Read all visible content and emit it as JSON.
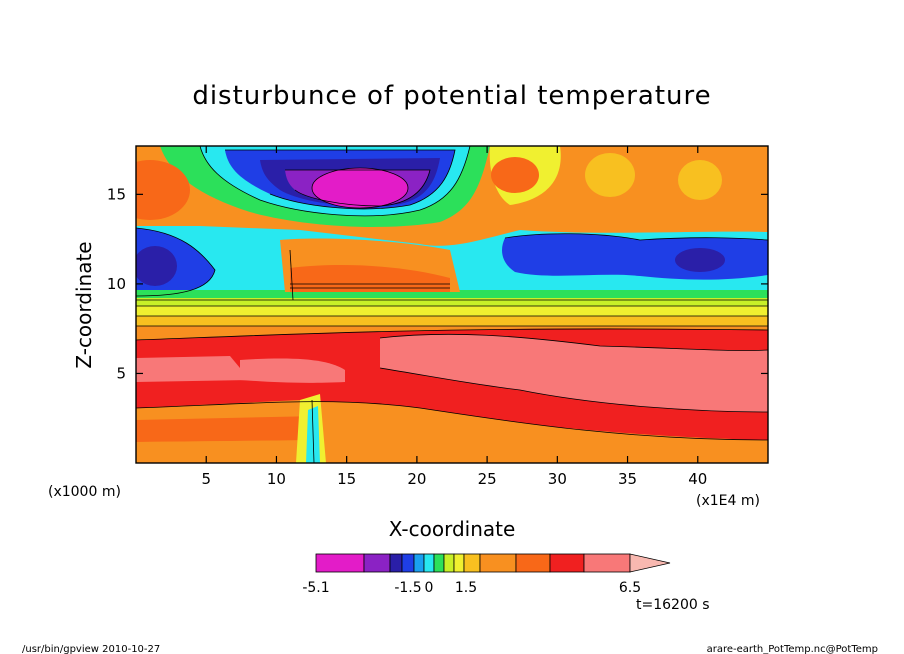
{
  "chart_data": {
    "type": "heatmap",
    "title": "disturbunce of potential temperature",
    "xlabel": "X-coordinate",
    "ylabel": "Z-coordinate",
    "x_unit_left": "(x1000 m)",
    "x_unit_right": "(x1E4 m)",
    "xlim": [
      0,
      45
    ],
    "ylim": [
      0,
      17.7
    ],
    "x_ticks": [
      5,
      10,
      15,
      20,
      25,
      30,
      35,
      40
    ],
    "y_ticks": [
      5,
      10,
      15
    ],
    "colorbar": {
      "labels": [
        "-5.1",
        "-1.5",
        "0",
        "1.5",
        "6.5"
      ],
      "colors": [
        "#e31cc8",
        "#8b22c4",
        "#2a1fa8",
        "#1f3ee6",
        "#1aa0f0",
        "#28e8f0",
        "#2ce05a",
        "#c8f028",
        "#f0f030",
        "#f8c020",
        "#f89020",
        "#f86818",
        "#f02020",
        "#f87878",
        "#f8b8b0"
      ]
    },
    "layers_by_height": [
      {
        "z": [
          0,
          1.0
        ],
        "level": "orange"
      },
      {
        "z": [
          1.0,
          2.2
        ],
        "level": "dark orange"
      },
      {
        "z": [
          2.2,
          3.4
        ],
        "level": "red"
      },
      {
        "z": [
          3.4,
          6.8
        ],
        "level": "pink (max ~6.5)"
      },
      {
        "z": [
          6.8,
          8.8
        ],
        "level": "red to orange"
      },
      {
        "z": [
          8.8,
          9.6
        ],
        "level": "yellow / green"
      },
      {
        "z": [
          9.6,
          12.5
        ],
        "level": "blue / cyan (negative)"
      },
      {
        "z": [
          13.5,
          17.7
        ],
        "level": "magenta / purple minimum ~-5.1 near x=16"
      }
    ],
    "grid": false
  },
  "time_label": "t=16200 s",
  "footer_left": "/usr/bin/gpview   2010-10-27",
  "footer_right": "arare-earth_PotTemp.nc@PotTemp"
}
